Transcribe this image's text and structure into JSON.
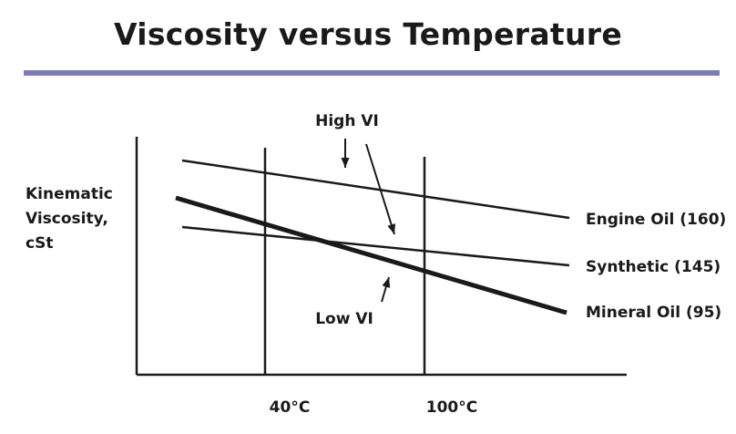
{
  "title": "Viscosity versus Temperature",
  "colors": {
    "rule": "#7b7cb4",
    "ink": "#1a1a1a"
  },
  "chart_data": {
    "type": "line",
    "title": "Viscosity versus Temperature",
    "ylabel": [
      "Kinematic",
      "Viscosity,",
      "cSt"
    ],
    "xlabel": "",
    "x_ticks": [
      "40°C",
      "100°C"
    ],
    "grid": false,
    "series": [
      {
        "name": "Engine Oil (160)",
        "vi": 160,
        "emphasis": false
      },
      {
        "name": "Synthetic (145)",
        "vi": 145,
        "emphasis": false
      },
      {
        "name": "Mineral Oil (95)",
        "vi": 95,
        "emphasis": true
      }
    ],
    "annotations": [
      {
        "text": "High VI"
      },
      {
        "text": "Low VI"
      }
    ]
  }
}
